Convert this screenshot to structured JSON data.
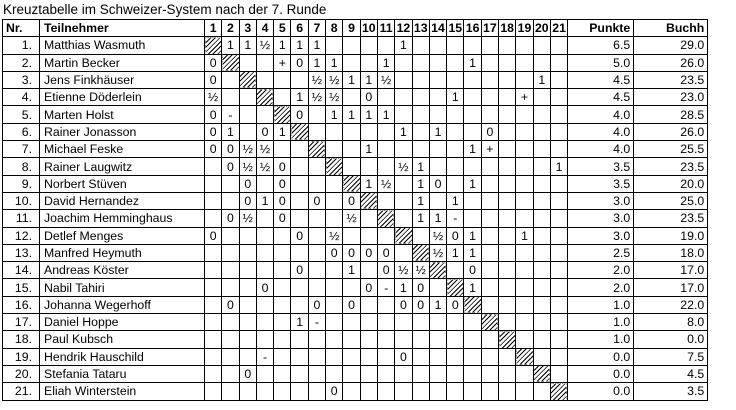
{
  "title": "Kreuztabelle im Schweizer-System nach der 7. Runde",
  "table": {
    "headers": {
      "nr": "Nr.",
      "name": "Teilnehmer",
      "rounds": [
        "1",
        "2",
        "3",
        "4",
        "5",
        "6",
        "7",
        "8",
        "9",
        "10",
        "11",
        "12",
        "13",
        "14",
        "15",
        "16",
        "17",
        "18",
        "19",
        "20",
        "21"
      ],
      "punkte": "Punkte",
      "buchh": "Buchh"
    },
    "players": [
      {
        "nr": "1.",
        "name": "Matthias Wasmuth",
        "results": {
          "2": "1",
          "3": "1",
          "4": "½",
          "5": "1",
          "6": "1",
          "7": "1",
          "12": "1"
        },
        "punkte": "6.5",
        "buchh": "29.0"
      },
      {
        "nr": "2.",
        "name": "Martin Becker",
        "results": {
          "1": "0",
          "5": "+",
          "6": "0",
          "7": "1",
          "8": "1",
          "11": "1",
          "16": "1"
        },
        "punkte": "5.0",
        "buchh": "26.0"
      },
      {
        "nr": "3.",
        "name": "Jens Finkhäuser",
        "results": {
          "1": "0",
          "7": "½",
          "8": "½",
          "9": "1",
          "10": "1",
          "11": "½",
          "20": "1"
        },
        "punkte": "4.5",
        "buchh": "23.5"
      },
      {
        "nr": "4.",
        "name": "Etienne Döderlein",
        "results": {
          "1": "½",
          "6": "1",
          "7": "½",
          "8": "½",
          "10": "0",
          "15": "1",
          "19": "+"
        },
        "punkte": "4.5",
        "buchh": "23.0"
      },
      {
        "nr": "5.",
        "name": "Marten Holst",
        "results": {
          "1": "0",
          "2": "-",
          "6": "0",
          "8": "1",
          "9": "1",
          "10": "1",
          "11": "1"
        },
        "punkte": "4.0",
        "buchh": "28.5"
      },
      {
        "nr": "6.",
        "name": "Rainer Jonasson",
        "results": {
          "1": "0",
          "2": "1",
          "4": "0",
          "5": "1",
          "12": "1",
          "14": "1",
          "17": "0"
        },
        "punkte": "4.0",
        "buchh": "26.0"
      },
      {
        "nr": "7.",
        "name": "Michael Feske",
        "results": {
          "1": "0",
          "2": "0",
          "3": "½",
          "4": "½",
          "10": "1",
          "16": "1",
          "17": "+"
        },
        "punkte": "4.0",
        "buchh": "25.5"
      },
      {
        "nr": "8.",
        "name": "Rainer Laugwitz",
        "results": {
          "2": "0",
          "3": "½",
          "4": "½",
          "5": "0",
          "12": "½",
          "13": "1",
          "21": "1"
        },
        "punkte": "3.5",
        "buchh": "23.5"
      },
      {
        "nr": "9.",
        "name": "Norbert Stüven",
        "results": {
          "3": "0",
          "5": "0",
          "10": "1",
          "11": "½",
          "13": "1",
          "14": "0",
          "16": "1"
        },
        "punkte": "3.5",
        "buchh": "20.0"
      },
      {
        "nr": "10.",
        "name": "David Hernandez",
        "results": {
          "3": "0",
          "4": "1",
          "5": "0",
          "7": "0",
          "9": "0",
          "13": "1",
          "15": "1"
        },
        "punkte": "3.0",
        "buchh": "25.0"
      },
      {
        "nr": "11.",
        "name": "Joachim Hemminghaus",
        "results": {
          "2": "0",
          "3": "½",
          "5": "0",
          "9": "½",
          "13": "1",
          "14": "1",
          "15": "-"
        },
        "punkte": "3.0",
        "buchh": "23.5"
      },
      {
        "nr": "12.",
        "name": "Detlef Menges",
        "results": {
          "1": "0",
          "6": "0",
          "8": "½",
          "14": "½",
          "15": "0",
          "16": "1",
          "19": "1"
        },
        "punkte": "3.0",
        "buchh": "19.0"
      },
      {
        "nr": "13.",
        "name": "Manfred Heymuth",
        "results": {
          "8": "0",
          "9": "0",
          "10": "0",
          "11": "0",
          "14": "½",
          "15": "1",
          "16": "1"
        },
        "punkte": "2.5",
        "buchh": "18.0"
      },
      {
        "nr": "14.",
        "name": "Andreas Köster",
        "results": {
          "6": "0",
          "9": "1",
          "11": "0",
          "12": "½",
          "13": "½",
          "16": "0"
        },
        "punkte": "2.0",
        "buchh": "17.0"
      },
      {
        "nr": "15.",
        "name": "Nabil Tahiri",
        "results": {
          "4": "0",
          "10": "0",
          "11": "-",
          "12": "1",
          "13": "0",
          "16": "1"
        },
        "punkte": "2.0",
        "buchh": "17.0"
      },
      {
        "nr": "16.",
        "name": "Johanna Wegerhoff",
        "results": {
          "2": "0",
          "7": "0",
          "9": "0",
          "12": "0",
          "13": "0",
          "14": "1",
          "15": "0"
        },
        "punkte": "1.0",
        "buchh": "22.0"
      },
      {
        "nr": "17.",
        "name": "Daniel Hoppe",
        "results": {
          "6": "1",
          "7": "-"
        },
        "punkte": "1.0",
        "buchh": "8.0"
      },
      {
        "nr": "18.",
        "name": "Paul Kubsch",
        "results": {},
        "punkte": "1.0",
        "buchh": "0.0"
      },
      {
        "nr": "19.",
        "name": "Hendrik Hauschild",
        "results": {
          "4": "-",
          "12": "0"
        },
        "punkte": "0.0",
        "buchh": "7.5"
      },
      {
        "nr": "20.",
        "name": "Stefania Tataru",
        "results": {
          "3": "0"
        },
        "punkte": "0.0",
        "buchh": "4.5"
      },
      {
        "nr": "21.",
        "name": "Eliah Winterstein",
        "results": {
          "8": "0"
        },
        "punkte": "0.0",
        "buchh": "3.5"
      }
    ]
  }
}
